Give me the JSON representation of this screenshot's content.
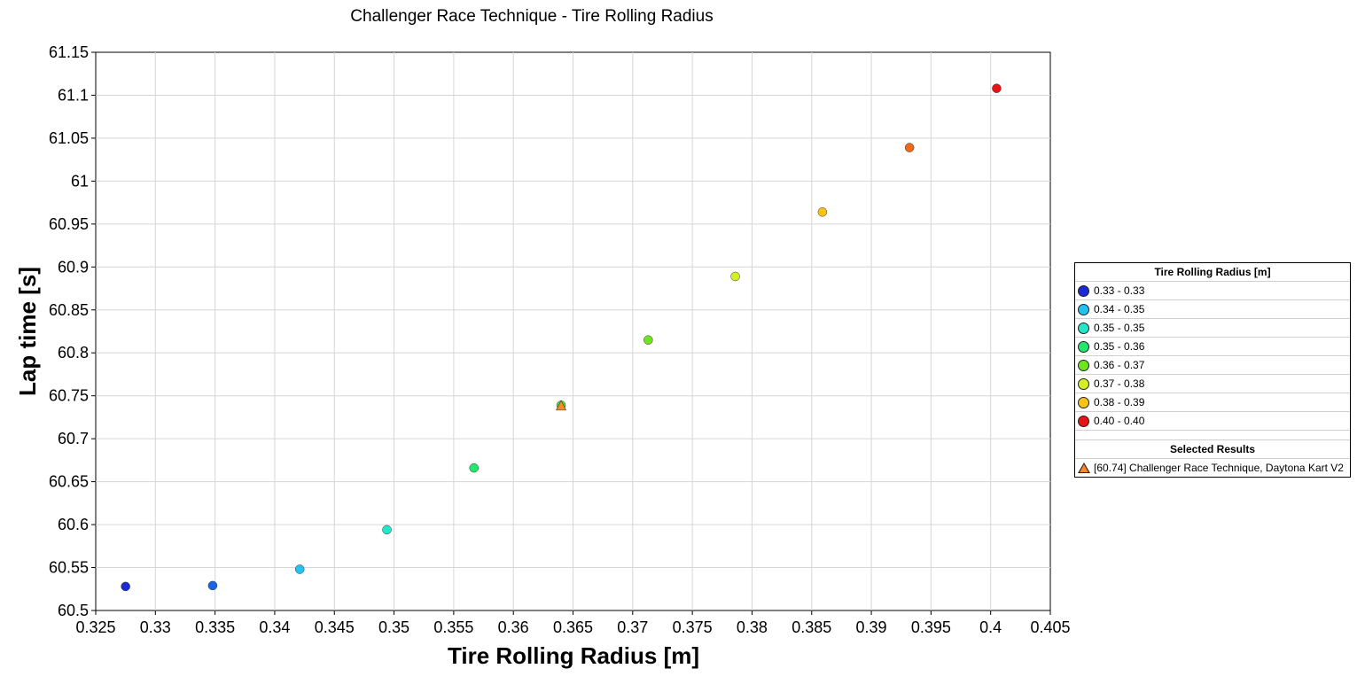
{
  "chart_data": {
    "type": "scatter",
    "title": "Challenger Race Technique - Tire Rolling Radius",
    "xlabel": "Tire Rolling Radius [m]",
    "ylabel": "Lap time [s]",
    "xlim": [
      0.325,
      0.405
    ],
    "ylim": [
      60.5,
      61.15
    ],
    "x_ticks": [
      "0.325",
      "0.33",
      "0.335",
      "0.34",
      "0.345",
      "0.35",
      "0.355",
      "0.36",
      "0.365",
      "0.37",
      "0.375",
      "0.38",
      "0.385",
      "0.39",
      "0.395",
      "0.4",
      "0.405"
    ],
    "y_ticks": [
      "60.5",
      "60.55",
      "60.6",
      "60.65",
      "60.7",
      "60.75",
      "60.8",
      "60.85",
      "60.9",
      "60.95",
      "61",
      "61.05",
      "61.1",
      "61.15"
    ],
    "grid": true,
    "legend_placement": "right",
    "points": [
      {
        "x": 0.3275,
        "y": 60.528,
        "color": "#1a2ad6"
      },
      {
        "x": 0.3348,
        "y": 60.529,
        "color": "#1a63e8"
      },
      {
        "x": 0.3421,
        "y": 60.548,
        "color": "#22c3f0"
      },
      {
        "x": 0.3494,
        "y": 60.594,
        "color": "#22e8c8"
      },
      {
        "x": 0.3567,
        "y": 60.666,
        "color": "#22e870"
      },
      {
        "x": 0.364,
        "y": 60.739,
        "color": "#52e830"
      },
      {
        "x": 0.3713,
        "y": 60.815,
        "color": "#6ee61e"
      },
      {
        "x": 0.3786,
        "y": 60.889,
        "color": "#d4f020"
      },
      {
        "x": 0.3859,
        "y": 60.964,
        "color": "#f8c414"
      },
      {
        "x": 0.3932,
        "y": 61.039,
        "color": "#f26818"
      },
      {
        "x": 0.4005,
        "y": 61.108,
        "color": "#e81414"
      }
    ],
    "selected": [
      {
        "x": 0.364,
        "y": 60.74,
        "color": "#f28c28"
      }
    ]
  },
  "legend": {
    "title": "Tire Rolling Radius [m]",
    "entries": [
      {
        "label": "0.33 - 0.33",
        "color": "#1a2ad6"
      },
      {
        "label": "0.34 - 0.35",
        "color": "#22c3f0"
      },
      {
        "label": "0.35 - 0.35",
        "color": "#22e8c8"
      },
      {
        "label": "0.35 - 0.36",
        "color": "#22e870"
      },
      {
        "label": "0.36 - 0.37",
        "color": "#6ee61e"
      },
      {
        "label": "0.37 - 0.38",
        "color": "#d4f020"
      },
      {
        "label": "0.38 - 0.39",
        "color": "#f8c414"
      },
      {
        "label": "0.40 - 0.40",
        "color": "#e81414"
      }
    ],
    "selected_title": "Selected Results",
    "selected_label": "[60.74] Challenger Race Technique, Daytona Kart V2"
  }
}
